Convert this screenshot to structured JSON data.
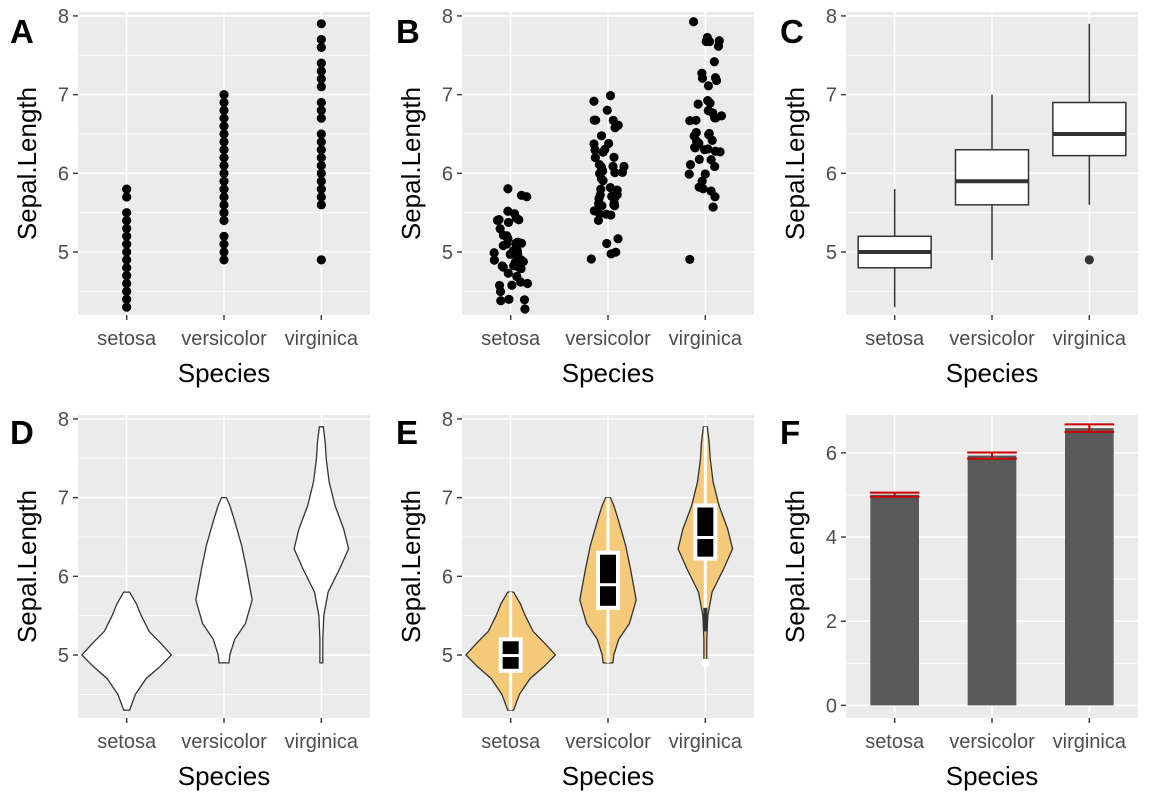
{
  "colors": {
    "panel_background": "#ebebeb",
    "grid": "#ffffff",
    "point": "#000000",
    "box_line": "#333333",
    "violin_fill_E": "#f5c97a",
    "bar_fill": "#595959",
    "error_bar": "#cc0000"
  },
  "chart_data": [
    {
      "tag": "A",
      "type": "scatter",
      "categories": [
        "setosa",
        "versicolor",
        "virginica"
      ],
      "xlabel": "Species",
      "ylabel": "Sepal.Length",
      "ylim": [
        4.2,
        8.05
      ],
      "yticks": [
        "5",
        "6",
        "7",
        "8"
      ],
      "grid": true,
      "series": [
        {
          "values": [
            4.3,
            4.4,
            4.5,
            4.6,
            4.7,
            4.8,
            4.9,
            5.0,
            5.1,
            5.2,
            5.3,
            5.4,
            5.5,
            5.7,
            5.8
          ]
        },
        {
          "values": [
            4.9,
            5.0,
            5.1,
            5.2,
            5.4,
            5.5,
            5.6,
            5.7,
            5.8,
            5.9,
            6.0,
            6.1,
            6.2,
            6.3,
            6.4,
            6.5,
            6.6,
            6.7,
            6.8,
            6.9,
            7.0
          ]
        },
        {
          "values": [
            4.9,
            5.6,
            5.7,
            5.8,
            5.9,
            6.0,
            6.1,
            6.2,
            6.3,
            6.4,
            6.5,
            6.7,
            6.8,
            6.9,
            7.1,
            7.2,
            7.3,
            7.4,
            7.6,
            7.7,
            7.9
          ]
        }
      ]
    },
    {
      "tag": "B",
      "type": "scatter",
      "categories": [
        "setosa",
        "versicolor",
        "virginica"
      ],
      "xlabel": "Species",
      "ylabel": "Sepal.Length",
      "ylim": [
        4.2,
        8.05
      ],
      "yticks": [
        "5",
        "6",
        "7",
        "8"
      ],
      "grid": true,
      "series": [
        {
          "values": [
            5.1,
            4.9,
            4.7,
            4.6,
            5.0,
            5.4,
            4.6,
            5.0,
            4.4,
            4.9,
            5.4,
            4.8,
            4.8,
            4.3,
            5.8,
            5.7,
            5.4,
            5.1,
            5.7,
            5.1,
            5.4,
            5.1,
            4.6,
            5.1,
            4.8,
            5.0,
            5.0,
            5.2,
            5.2,
            4.7,
            4.8,
            5.4,
            5.2,
            5.5,
            4.9,
            5.0,
            5.5,
            4.9,
            4.4,
            5.1,
            5.0,
            4.5,
            4.4,
            5.0,
            5.1,
            4.8,
            5.1,
            4.6,
            5.3,
            5.0
          ]
        },
        {
          "values": [
            7.0,
            6.4,
            6.9,
            5.5,
            6.5,
            5.7,
            6.3,
            4.9,
            6.6,
            5.2,
            5.0,
            5.9,
            6.0,
            6.1,
            5.6,
            6.7,
            5.6,
            5.8,
            6.2,
            5.6,
            5.9,
            6.1,
            6.3,
            6.1,
            6.4,
            6.6,
            6.8,
            6.7,
            6.0,
            5.7,
            5.5,
            5.5,
            5.8,
            6.0,
            5.4,
            6.0,
            6.7,
            6.3,
            5.6,
            5.5,
            5.5,
            6.1,
            5.8,
            5.0,
            5.6,
            5.7,
            5.7,
            6.2,
            5.1,
            5.7
          ]
        },
        {
          "values": [
            6.3,
            5.8,
            7.1,
            6.3,
            6.5,
            7.6,
            4.9,
            7.3,
            6.7,
            7.2,
            6.5,
            6.4,
            6.8,
            5.7,
            5.8,
            6.4,
            6.5,
            7.7,
            7.7,
            6.0,
            6.9,
            5.6,
            7.7,
            6.3,
            6.7,
            7.2,
            6.2,
            6.1,
            6.4,
            7.2,
            7.4,
            7.9,
            6.4,
            6.3,
            6.1,
            7.7,
            6.3,
            6.4,
            6.0,
            6.9,
            6.7,
            6.9,
            5.8,
            6.8,
            6.7,
            6.7,
            6.3,
            6.5,
            6.2,
            5.9
          ]
        }
      ]
    },
    {
      "tag": "C",
      "type": "box",
      "categories": [
        "setosa",
        "versicolor",
        "virginica"
      ],
      "xlabel": "Species",
      "ylabel": "Sepal.Length",
      "ylim": [
        4.2,
        8.05
      ],
      "yticks": [
        "5",
        "6",
        "7",
        "8"
      ],
      "grid": true,
      "boxes": [
        {
          "min": 4.3,
          "q1": 4.8,
          "median": 5.0,
          "q3": 5.2,
          "max": 5.8,
          "outliers": []
        },
        {
          "min": 4.9,
          "q1": 5.6,
          "median": 5.9,
          "q3": 6.3,
          "max": 7.0,
          "outliers": []
        },
        {
          "min": 5.6,
          "q1": 6.225,
          "median": 6.5,
          "q3": 6.9,
          "max": 7.9,
          "outliers": [
            4.9
          ]
        }
      ]
    },
    {
      "tag": "D",
      "type": "violin",
      "categories": [
        "setosa",
        "versicolor",
        "virginica"
      ],
      "xlabel": "Species",
      "ylabel": "Sepal.Length",
      "ylim": [
        4.2,
        8.05
      ],
      "yticks": [
        "5",
        "6",
        "7",
        "8"
      ],
      "grid": true,
      "fill": "#ffffff",
      "violins": [
        {
          "range": [
            4.3,
            5.8
          ],
          "profile": [
            [
              4.3,
              0.06
            ],
            [
              4.5,
              0.18
            ],
            [
              4.7,
              0.4
            ],
            [
              4.85,
              0.68
            ],
            [
              5.0,
              0.92
            ],
            [
              5.15,
              0.7
            ],
            [
              5.3,
              0.46
            ],
            [
              5.5,
              0.3
            ],
            [
              5.65,
              0.2
            ],
            [
              5.8,
              0.06
            ]
          ]
        },
        {
          "range": [
            4.9,
            7.0
          ],
          "profile": [
            [
              4.9,
              0.1
            ],
            [
              5.0,
              0.12
            ],
            [
              5.2,
              0.22
            ],
            [
              5.4,
              0.44
            ],
            [
              5.7,
              0.58
            ],
            [
              5.9,
              0.52
            ],
            [
              6.1,
              0.46
            ],
            [
              6.4,
              0.36
            ],
            [
              6.7,
              0.22
            ],
            [
              6.9,
              0.12
            ],
            [
              7.0,
              0.05
            ]
          ]
        },
        {
          "range": [
            4.9,
            7.9
          ],
          "profile": [
            [
              4.9,
              0.03
            ],
            [
              5.2,
              0.03
            ],
            [
              5.5,
              0.05
            ],
            [
              5.8,
              0.14
            ],
            [
              6.1,
              0.38
            ],
            [
              6.35,
              0.56
            ],
            [
              6.6,
              0.46
            ],
            [
              6.9,
              0.28
            ],
            [
              7.2,
              0.16
            ],
            [
              7.5,
              0.1
            ],
            [
              7.7,
              0.08
            ],
            [
              7.9,
              0.04
            ]
          ]
        }
      ]
    },
    {
      "tag": "E",
      "type": "violin",
      "categories": [
        "setosa",
        "versicolor",
        "virginica"
      ],
      "xlabel": "Species",
      "ylabel": "Sepal.Length",
      "ylim": [
        4.2,
        8.05
      ],
      "yticks": [
        "5",
        "6",
        "7",
        "8"
      ],
      "grid": true,
      "fill": "#f5c97a",
      "violins": [
        {
          "range": [
            4.3,
            5.8
          ],
          "profile": [
            [
              4.3,
              0.06
            ],
            [
              4.5,
              0.18
            ],
            [
              4.7,
              0.4
            ],
            [
              4.85,
              0.68
            ],
            [
              5.0,
              0.92
            ],
            [
              5.15,
              0.7
            ],
            [
              5.3,
              0.46
            ],
            [
              5.5,
              0.3
            ],
            [
              5.65,
              0.2
            ],
            [
              5.8,
              0.06
            ]
          ]
        },
        {
          "range": [
            4.9,
            7.0
          ],
          "profile": [
            [
              4.9,
              0.1
            ],
            [
              5.0,
              0.12
            ],
            [
              5.2,
              0.22
            ],
            [
              5.4,
              0.44
            ],
            [
              5.7,
              0.58
            ],
            [
              5.9,
              0.52
            ],
            [
              6.1,
              0.46
            ],
            [
              6.4,
              0.36
            ],
            [
              6.7,
              0.22
            ],
            [
              6.9,
              0.12
            ],
            [
              7.0,
              0.05
            ]
          ]
        },
        {
          "range": [
            4.9,
            7.9
          ],
          "profile": [
            [
              4.9,
              0.03
            ],
            [
              5.2,
              0.03
            ],
            [
              5.5,
              0.05
            ],
            [
              5.8,
              0.14
            ],
            [
              6.1,
              0.38
            ],
            [
              6.35,
              0.56
            ],
            [
              6.6,
              0.46
            ],
            [
              6.9,
              0.28
            ],
            [
              7.2,
              0.16
            ],
            [
              7.5,
              0.1
            ],
            [
              7.7,
              0.08
            ],
            [
              7.9,
              0.04
            ]
          ]
        }
      ],
      "inner_boxes": [
        {
          "min": 4.3,
          "q1": 4.8,
          "median": 5.0,
          "q3": 5.2,
          "max": 5.8
        },
        {
          "min": 4.9,
          "q1": 5.6,
          "median": 5.9,
          "q3": 6.3,
          "max": 7.0
        },
        {
          "min": 5.6,
          "q1": 6.225,
          "median": 6.5,
          "q3": 6.9,
          "max": 7.9,
          "outlier": 4.9
        }
      ]
    },
    {
      "tag": "F",
      "type": "bar",
      "categories": [
        "setosa",
        "versicolor",
        "virginica"
      ],
      "xlabel": "Species",
      "ylabel": "Sepal.Length",
      "ylim": [
        -0.3,
        6.9
      ],
      "yticks": [
        "0",
        "2",
        "4",
        "6"
      ],
      "grid": true,
      "values": [
        5.006,
        5.936,
        6.588
      ],
      "error": [
        0.05,
        0.073,
        0.09
      ]
    }
  ]
}
